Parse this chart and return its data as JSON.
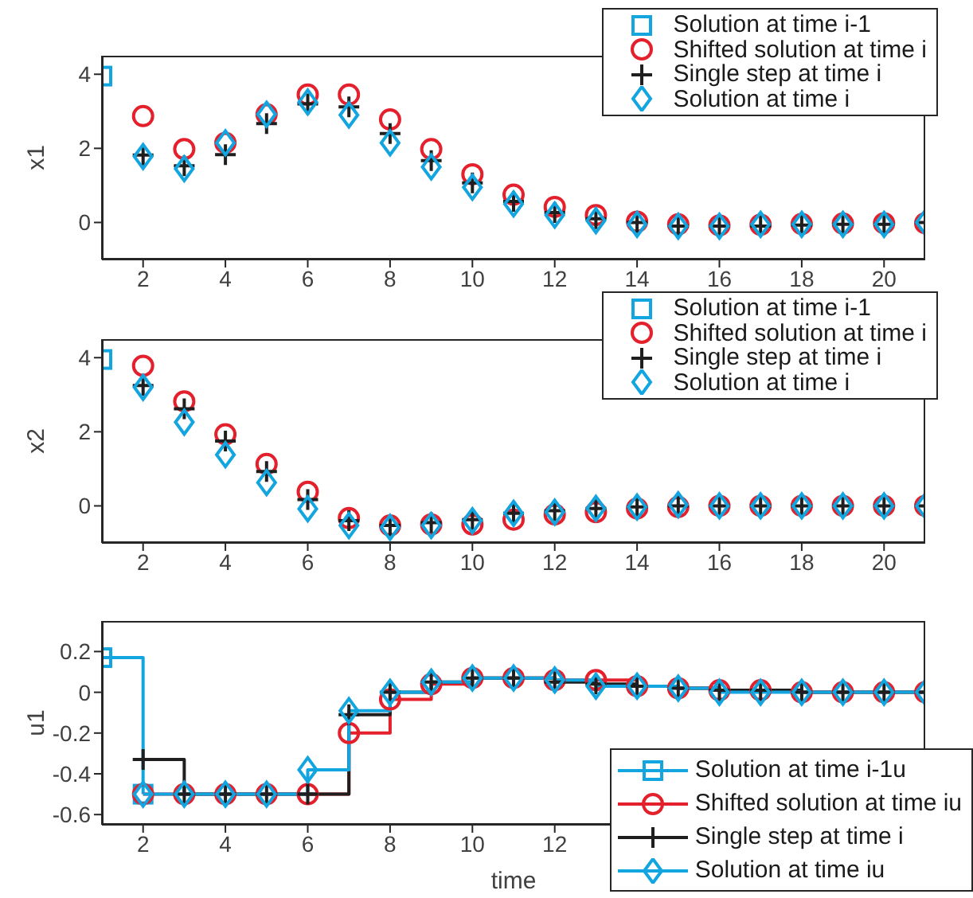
{
  "chart_data": [
    {
      "type": "scatter",
      "ylabel": "x1",
      "x": [
        1,
        2,
        3,
        4,
        5,
        6,
        7,
        8,
        9,
        10,
        11,
        12,
        13,
        14,
        15,
        16,
        17,
        18,
        19,
        20,
        21
      ],
      "xlim": [
        1,
        21
      ],
      "xticks": [
        2,
        4,
        6,
        8,
        10,
        12,
        14,
        16,
        18,
        20
      ],
      "ylim": [
        -1,
        4.5
      ],
      "yticks": [
        0,
        2,
        4
      ],
      "legend": "top right",
      "series": [
        {
          "name": "Solution at time i-1",
          "color": "#12a5e0",
          "marker": "square",
          "values": [
            3.95,
            null,
            null,
            null,
            null,
            null,
            null,
            null,
            null,
            null,
            null,
            null,
            null,
            null,
            null,
            null,
            null,
            null,
            null,
            null,
            null
          ]
        },
        {
          "name": "Shifted solution at time i",
          "color": "#e3202b",
          "marker": "circle",
          "values": [
            null,
            2.87,
            1.98,
            2.15,
            2.92,
            3.45,
            3.45,
            2.78,
            1.98,
            1.3,
            0.75,
            0.42,
            0.2,
            0.02,
            -0.05,
            -0.08,
            -0.06,
            -0.04,
            -0.03,
            -0.02,
            -0.02
          ]
        },
        {
          "name": "Single step at time i",
          "color": "#1f1f1f",
          "marker": "cross",
          "values": [
            null,
            1.82,
            1.53,
            1.83,
            2.67,
            3.2,
            3.12,
            2.4,
            1.67,
            1.07,
            0.57,
            0.27,
            0.1,
            0,
            -0.1,
            -0.1,
            -0.1,
            -0.07,
            -0.05,
            -0.05,
            0
          ]
        },
        {
          "name": "Solution at time i",
          "color": "#12a5e0",
          "marker": "diamond",
          "values": [
            null,
            1.78,
            1.45,
            2.15,
            2.92,
            3.25,
            2.9,
            2.15,
            1.5,
            0.95,
            0.5,
            0.2,
            0.05,
            -0.05,
            -0.1,
            -0.1,
            -0.05,
            -0.05,
            -0.05,
            -0.05,
            0
          ]
        }
      ]
    },
    {
      "type": "scatter",
      "ylabel": "x2",
      "x": [
        1,
        2,
        3,
        4,
        5,
        6,
        7,
        8,
        9,
        10,
        11,
        12,
        13,
        14,
        15,
        16,
        17,
        18,
        19,
        20,
        21
      ],
      "xlim": [
        1,
        21
      ],
      "xticks": [
        2,
        4,
        6,
        8,
        10,
        12,
        14,
        16,
        18,
        20
      ],
      "ylim": [
        -1,
        4.5
      ],
      "yticks": [
        0,
        2,
        4
      ],
      "legend": "top right",
      "series": [
        {
          "name": "Solution at time i-1",
          "color": "#12a5e0",
          "marker": "square",
          "values": [
            3.95,
            null,
            null,
            null,
            null,
            null,
            null,
            null,
            null,
            null,
            null,
            null,
            null,
            null,
            null,
            null,
            null,
            null,
            null,
            null,
            null
          ]
        },
        {
          "name": "Shifted solution at time i",
          "color": "#e3202b",
          "marker": "circle",
          "values": [
            null,
            3.78,
            2.82,
            1.93,
            1.13,
            0.38,
            -0.33,
            -0.53,
            -0.5,
            -0.5,
            -0.37,
            -0.23,
            -0.17,
            -0.07,
            -0.03,
            0,
            0,
            0,
            0,
            0,
            0
          ]
        },
        {
          "name": "Single step at time i",
          "color": "#1f1f1f",
          "marker": "cross",
          "values": [
            null,
            3.25,
            2.62,
            1.75,
            0.93,
            0.17,
            -0.4,
            -0.53,
            -0.45,
            -0.37,
            -0.2,
            -0.13,
            -0.07,
            -0.03,
            0,
            0,
            0,
            0,
            0,
            0,
            0
          ]
        },
        {
          "name": "Solution at time i",
          "color": "#12a5e0",
          "marker": "diamond",
          "values": [
            null,
            3.2,
            2.26,
            1.38,
            0.63,
            -0.08,
            -0.53,
            -0.58,
            -0.53,
            -0.4,
            -0.2,
            -0.17,
            -0.07,
            -0.03,
            0.03,
            0,
            0,
            0,
            0,
            0,
            0
          ]
        }
      ]
    },
    {
      "type": "step",
      "ylabel": "u1",
      "xlabel": "time",
      "x": [
        1,
        2,
        3,
        4,
        5,
        6,
        7,
        8,
        9,
        10,
        11,
        12,
        13,
        14,
        15,
        16,
        17,
        18,
        19,
        20,
        21
      ],
      "xlim": [
        1,
        21
      ],
      "xticks": [
        2,
        4,
        6,
        8,
        10,
        12
      ],
      "ylim": [
        -0.65,
        0.35
      ],
      "yticks": [
        -0.6,
        -0.4,
        -0.2,
        0,
        0.2
      ],
      "legend": "bottom right",
      "series": [
        {
          "name": "Solution at time i-1u",
          "color": "#12a5e0",
          "marker": "square",
          "values": [
            0.17,
            -0.5,
            null,
            null,
            null,
            null,
            null,
            null,
            null,
            null,
            null,
            null,
            null,
            null,
            null,
            null,
            null,
            null,
            null,
            null,
            null
          ]
        },
        {
          "name": "Shifted solution at time iu",
          "color": "#e3202b",
          "marker": "circle",
          "values": [
            null,
            -0.5,
            -0.5,
            -0.5,
            -0.5,
            -0.5,
            -0.2,
            -0.035,
            0.04,
            0.07,
            0.07,
            0.06,
            0.06,
            0.03,
            0.02,
            0.01,
            0.01,
            0,
            0,
            0,
            0
          ]
        },
        {
          "name": "Single step at time i",
          "color": "#1f1f1f",
          "marker": "cross",
          "values": [
            null,
            -0.33,
            -0.5,
            -0.5,
            -0.5,
            -0.5,
            -0.11,
            0,
            0.05,
            0.07,
            0.07,
            0.05,
            0.04,
            0.03,
            0.02,
            0.01,
            0.01,
            0,
            0,
            0,
            0
          ]
        },
        {
          "name": "Solution at time iu",
          "color": "#12a5e0",
          "marker": "diamond",
          "values": [
            null,
            -0.5,
            -0.5,
            -0.5,
            -0.5,
            -0.38,
            -0.09,
            0,
            0.05,
            0.07,
            0.07,
            0.06,
            0.03,
            0.03,
            0.02,
            0,
            0,
            0,
            0,
            0,
            0
          ]
        }
      ]
    }
  ]
}
